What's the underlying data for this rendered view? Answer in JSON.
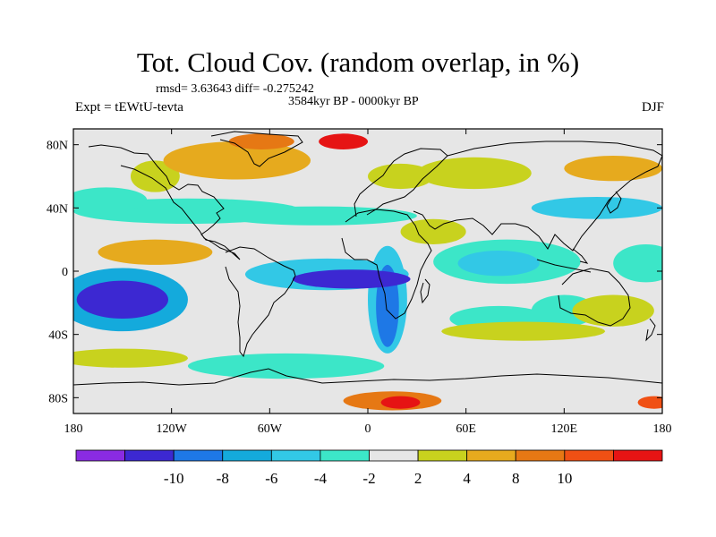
{
  "title": "Tot. Cloud Cov. (random overlap, in %)",
  "stats_line": "rmsd= 3.63643 diff= -0.275242",
  "period_line": "3584kyr BP - 0000kyr BP",
  "experiment_line": "Expt = tEWtU-tevta",
  "season": "DJF",
  "map": {
    "projection": "cylindrical-equidistant",
    "lon_range": [
      -180,
      180
    ],
    "lat_range": [
      -90,
      90
    ],
    "lat_ticks": [
      {
        "value": 80,
        "label": "80N"
      },
      {
        "value": 40,
        "label": "40N"
      },
      {
        "value": 0,
        "label": "0"
      },
      {
        "value": -40,
        "label": "40S"
      },
      {
        "value": -80,
        "label": "80S"
      }
    ],
    "lon_ticks": [
      {
        "value": -180,
        "label": "180"
      },
      {
        "value": -120,
        "label": "120W"
      },
      {
        "value": -60,
        "label": "60W"
      },
      {
        "value": 0,
        "label": "0"
      },
      {
        "value": 60,
        "label": "60E"
      },
      {
        "value": 120,
        "label": "120E"
      },
      {
        "value": 180,
        "label": "180"
      }
    ]
  },
  "colorbar": {
    "colors": [
      "#8a2be2",
      "#3c28d2",
      "#1e78e6",
      "#14aadc",
      "#32c8e6",
      "#3ce6c8",
      "#e6e6e6",
      "#c8d21e",
      "#e6aa1e",
      "#e67814",
      "#f05014",
      "#e61414"
    ],
    "labels": [
      "-10",
      "-8",
      "-6",
      "-4",
      "-2",
      "2",
      "4",
      "8",
      "10"
    ]
  },
  "contour_levels": [
    -12,
    -10,
    -8,
    -6,
    -4,
    -2,
    2,
    4,
    8,
    10,
    12
  ],
  "anomaly_blobs": [
    {
      "lon": -150,
      "lat": -18,
      "w": 28,
      "h": 12,
      "value": -12
    },
    {
      "lon": -150,
      "lat": -18,
      "w": 40,
      "h": 20,
      "value": -7
    },
    {
      "lon": -10,
      "lat": -5,
      "w": 36,
      "h": 6,
      "value": -11
    },
    {
      "lon": -25,
      "lat": -2,
      "w": 50,
      "h": 10,
      "value": -6
    },
    {
      "lon": 12,
      "lat": -22,
      "w": 7,
      "h": 26,
      "value": -10
    },
    {
      "lon": 12,
      "lat": -18,
      "w": 12,
      "h": 34,
      "value": -5
    },
    {
      "lon": 80,
      "lat": 5,
      "w": 25,
      "h": 8,
      "value": -5
    },
    {
      "lon": 85,
      "lat": 6,
      "w": 45,
      "h": 14,
      "value": -3
    },
    {
      "lon": 140,
      "lat": 40,
      "w": 40,
      "h": 7,
      "value": -5
    },
    {
      "lon": -110,
      "lat": 38,
      "w": 70,
      "h": 8,
      "value": -3
    },
    {
      "lon": -30,
      "lat": 35,
      "w": 60,
      "h": 6,
      "value": -3
    },
    {
      "lon": -160,
      "lat": 45,
      "w": 25,
      "h": 8,
      "value": -3
    },
    {
      "lon": 170,
      "lat": 5,
      "w": 20,
      "h": 12,
      "value": -3
    },
    {
      "lon": -50,
      "lat": -60,
      "w": 60,
      "h": 8,
      "value": -3
    },
    {
      "lon": 80,
      "lat": -30,
      "w": 30,
      "h": 8,
      "value": -3
    },
    {
      "lon": 120,
      "lat": -25,
      "w": 20,
      "h": 10,
      "value": -3
    },
    {
      "lon": -15,
      "lat": 82,
      "w": 15,
      "h": 5,
      "value": 12
    },
    {
      "lon": -65,
      "lat": 82,
      "w": 20,
      "h": 5,
      "value": 8
    },
    {
      "lon": -80,
      "lat": 70,
      "w": 45,
      "h": 12,
      "value": 5
    },
    {
      "lon": 20,
      "lat": -83,
      "w": 12,
      "h": 4,
      "value": 12
    },
    {
      "lon": 15,
      "lat": -82,
      "w": 30,
      "h": 6,
      "value": 8
    },
    {
      "lon": 175,
      "lat": -83,
      "w": 10,
      "h": 4,
      "value": 10
    },
    {
      "lon": -130,
      "lat": 12,
      "w": 35,
      "h": 8,
      "value": 4
    },
    {
      "lon": 150,
      "lat": -25,
      "w": 25,
      "h": 10,
      "value": 3
    },
    {
      "lon": 95,
      "lat": -38,
      "w": 50,
      "h": 6,
      "value": 3
    },
    {
      "lon": -150,
      "lat": -55,
      "w": 40,
      "h": 6,
      "value": 3
    },
    {
      "lon": 65,
      "lat": 62,
      "w": 35,
      "h": 10,
      "value": 3
    },
    {
      "lon": 150,
      "lat": 65,
      "w": 30,
      "h": 8,
      "value": 4
    },
    {
      "lon": 20,
      "lat": 60,
      "w": 20,
      "h": 8,
      "value": 3
    },
    {
      "lon": -175,
      "lat": -15,
      "w": 8,
      "h": 8,
      "value": 5
    },
    {
      "lon": -130,
      "lat": 60,
      "w": 15,
      "h": 10,
      "value": 3
    },
    {
      "lon": 40,
      "lat": 25,
      "w": 20,
      "h": 8,
      "value": 3
    }
  ]
}
